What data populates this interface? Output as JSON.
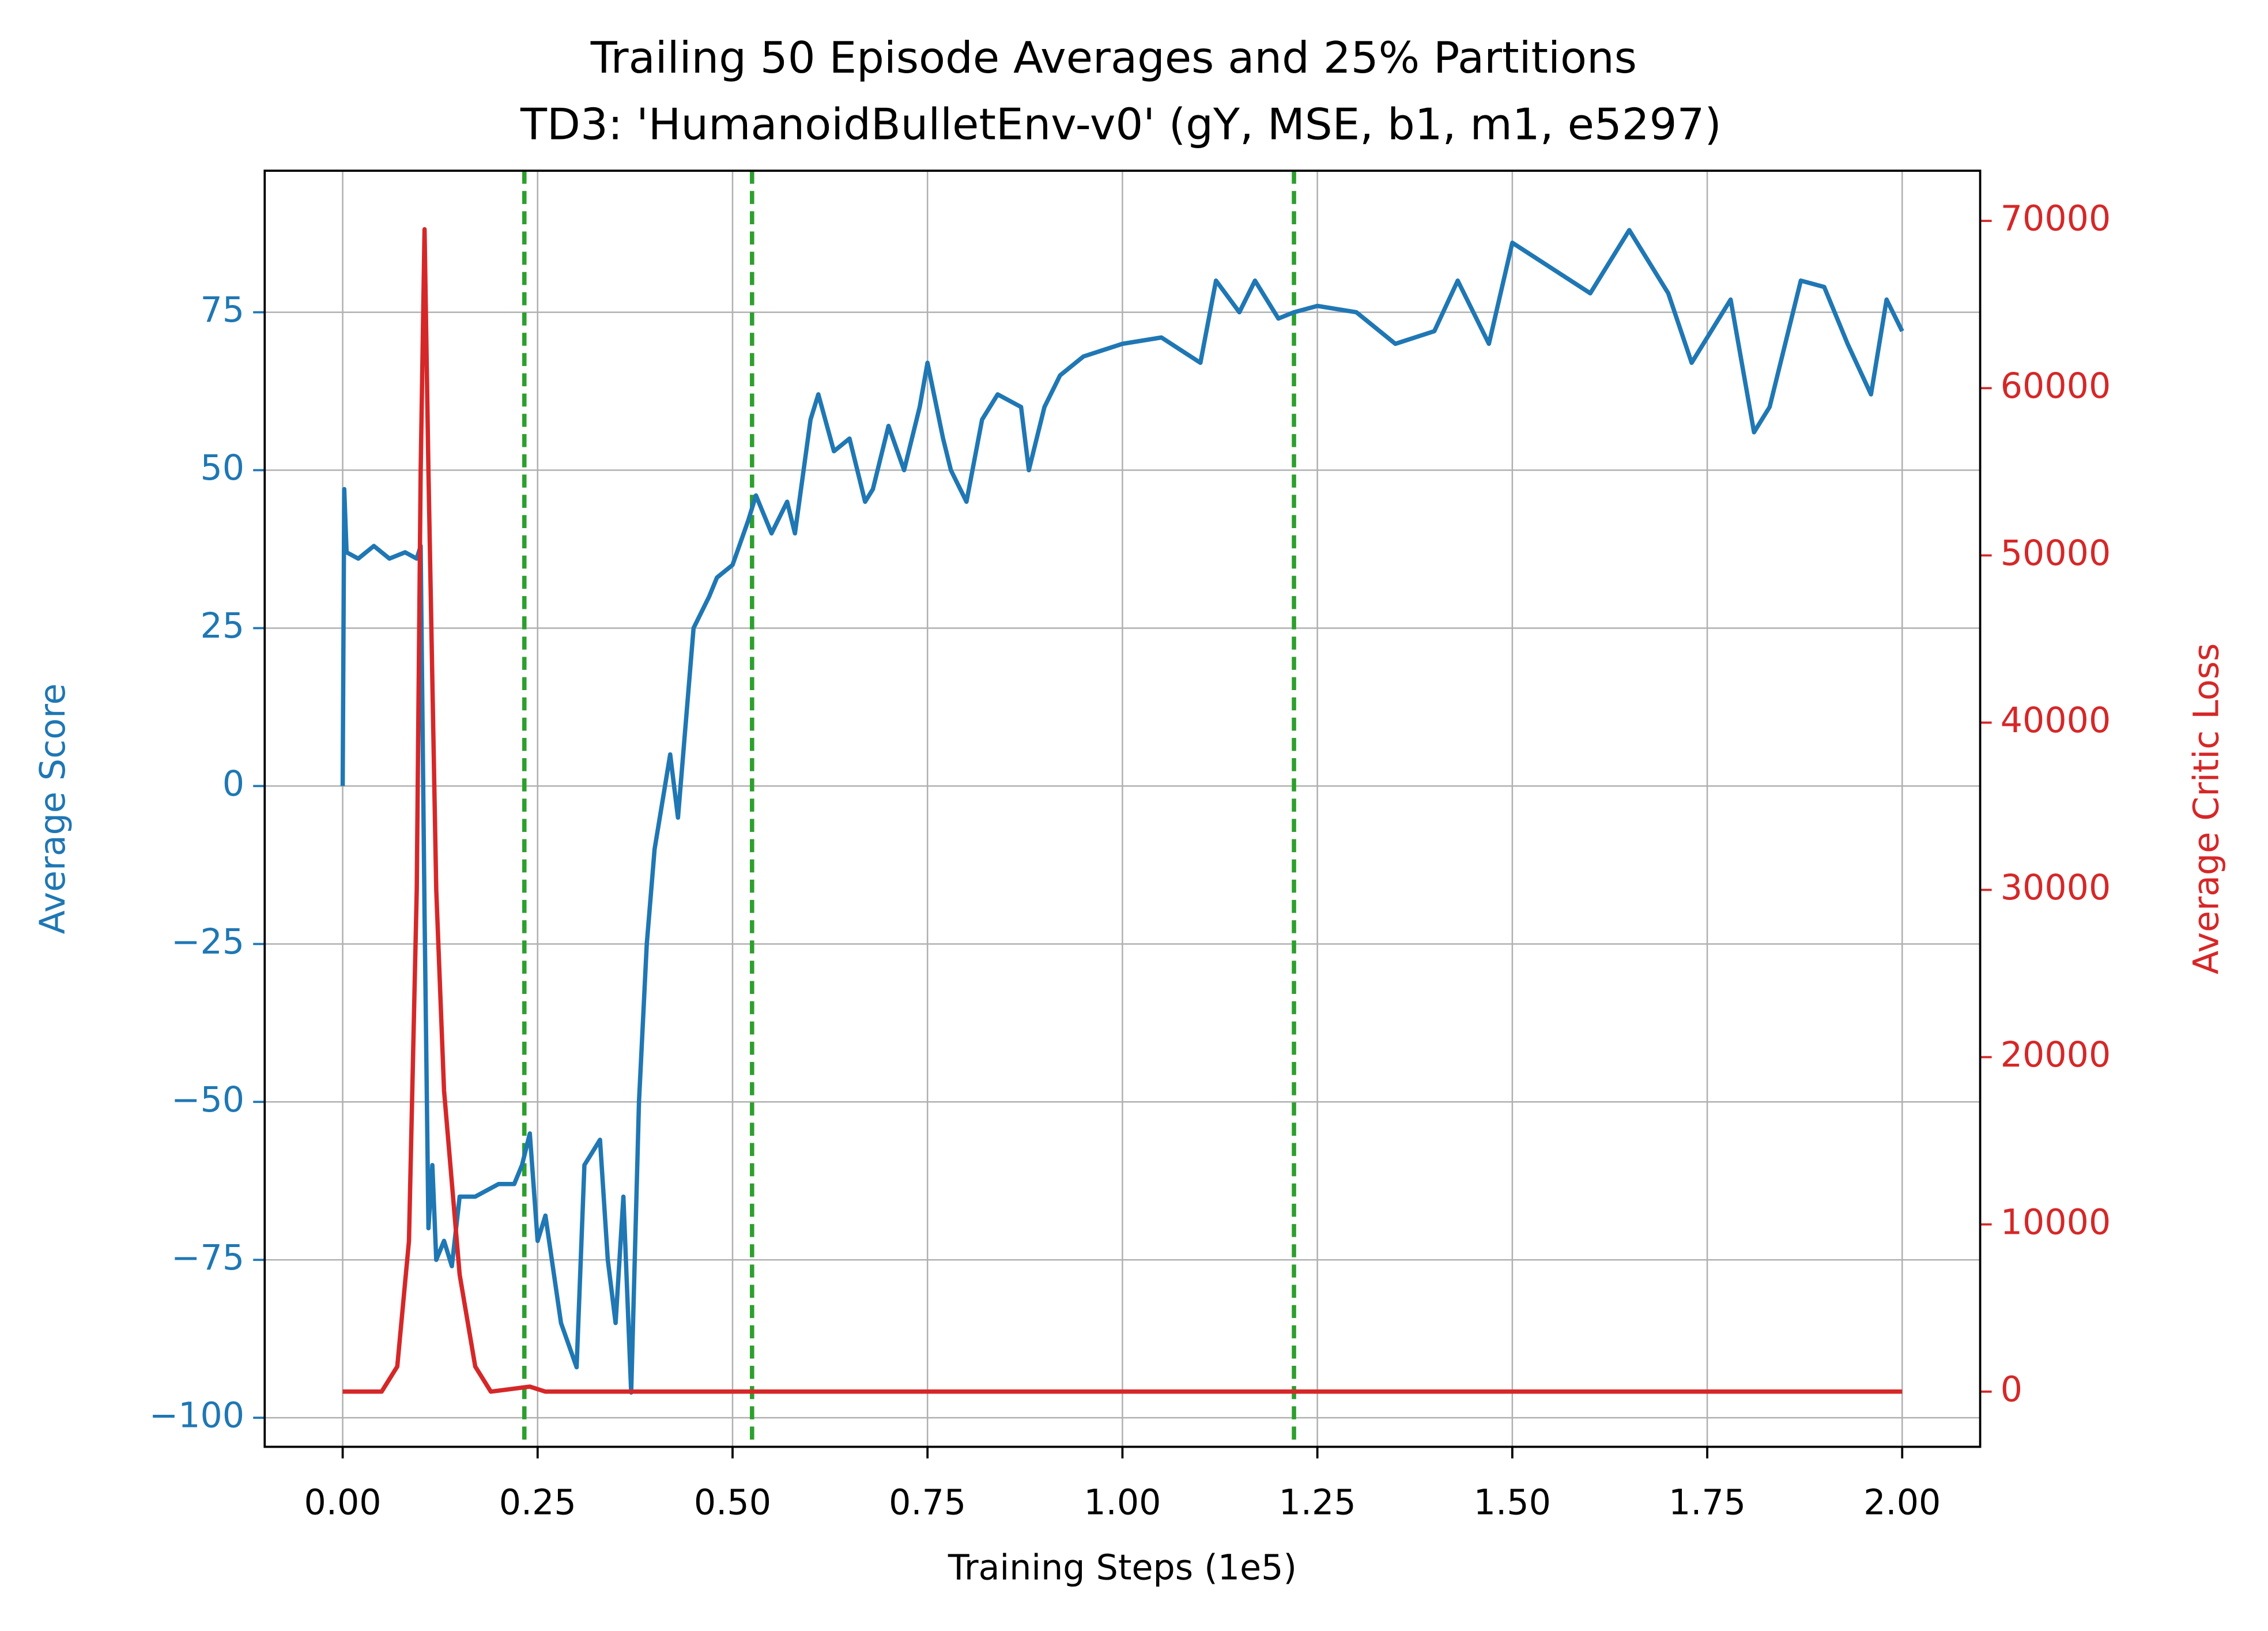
{
  "chart_data": {
    "type": "line",
    "title": "Trailing 50 Episode Averages and 25% Partitions",
    "subtitle": "TD3: 'HumanoidBulletEnv-v0' (gY, MSE, b1, m1, e5297)",
    "xlabel": "Training Steps (1e5)",
    "ylabel": "Average Score",
    "y2label": "Average Critic Loss",
    "xlim": [
      -0.1,
      2.1
    ],
    "ylim": [
      -104.6,
      97.4
    ],
    "y2lim": [
      -3300,
      73000
    ],
    "xticks": [
      {
        "value": 0,
        "label": "0.00"
      },
      {
        "value": 0.25,
        "label": "0.25"
      },
      {
        "value": 0.5,
        "label": "0.50"
      },
      {
        "value": 0.75,
        "label": "0.75"
      },
      {
        "value": 1,
        "label": "1.00"
      },
      {
        "value": 1.25,
        "label": "1.25"
      },
      {
        "value": 1.5,
        "label": "1.50"
      },
      {
        "value": 1.75,
        "label": "1.75"
      },
      {
        "value": 2,
        "label": "2.00"
      }
    ],
    "yticks": [
      {
        "value": -100,
        "label": "−100"
      },
      {
        "value": -75,
        "label": "−75"
      },
      {
        "value": -50,
        "label": "−50"
      },
      {
        "value": -25,
        "label": "−25"
      },
      0,
      25,
      50,
      75
    ],
    "y2ticks": [
      0,
      10000,
      20000,
      30000,
      40000,
      50000,
      60000,
      70000
    ],
    "grid": true,
    "vlines": {
      "color": "#2ca02c",
      "x": [
        0.233,
        0.525,
        1.22
      ]
    },
    "series": [
      {
        "name": "Average Score",
        "color": "#1f77b4",
        "axis": "y",
        "x": [
          0,
          0.002,
          0.005,
          0.02,
          0.04,
          0.06,
          0.08,
          0.095,
          0.1,
          0.105,
          0.11,
          0.115,
          0.12,
          0.13,
          0.14,
          0.15,
          0.17,
          0.2,
          0.22,
          0.23,
          0.24,
          0.25,
          0.26,
          0.28,
          0.3,
          0.31,
          0.33,
          0.34,
          0.35,
          0.36,
          0.37,
          0.38,
          0.39,
          0.4,
          0.42,
          0.43,
          0.45,
          0.47,
          0.48,
          0.5,
          0.52,
          0.53,
          0.55,
          0.57,
          0.58,
          0.6,
          0.61,
          0.63,
          0.65,
          0.67,
          0.68,
          0.7,
          0.72,
          0.74,
          0.75,
          0.77,
          0.78,
          0.8,
          0.82,
          0.84,
          0.87,
          0.88,
          0.9,
          0.92,
          0.95,
          1.0,
          1.05,
          1.1,
          1.12,
          1.15,
          1.17,
          1.2,
          1.22,
          1.25,
          1.3,
          1.35,
          1.4,
          1.43,
          1.47,
          1.5,
          1.55,
          1.6,
          1.65,
          1.7,
          1.73,
          1.78,
          1.81,
          1.83,
          1.87,
          1.9,
          1.93,
          1.96,
          1.98,
          2.0
        ],
        "y": [
          0,
          47,
          37,
          36,
          38,
          36,
          37,
          36,
          38,
          -20,
          -70,
          -60,
          -75,
          -72,
          -76,
          -65,
          -65,
          -63,
          -63,
          -60,
          -55,
          -72,
          -68,
          -85,
          -92,
          -60,
          -56,
          -75,
          -85,
          -65,
          -96,
          -50,
          -25,
          -10,
          5,
          -5,
          25,
          30,
          33,
          35,
          42,
          46,
          40,
          45,
          40,
          58,
          62,
          53,
          55,
          45,
          47,
          57,
          50,
          60,
          67,
          55,
          50,
          45,
          58,
          62,
          60,
          50,
          60,
          65,
          68,
          70,
          71,
          67,
          80,
          75,
          80,
          74,
          75,
          76,
          75,
          70,
          72,
          80,
          70,
          86,
          82,
          78,
          88,
          78,
          67,
          77,
          56,
          60,
          80,
          79,
          70,
          62,
          77,
          72
        ]
      },
      {
        "name": "Average Critic Loss",
        "color": "#d62728",
        "axis": "y2",
        "x": [
          0,
          0.05,
          0.07,
          0.085,
          0.095,
          0.1,
          0.105,
          0.11,
          0.12,
          0.13,
          0.15,
          0.17,
          0.19,
          0.24,
          0.26,
          2.0
        ],
        "y": [
          0,
          0,
          1500,
          9000,
          30000,
          55000,
          69500,
          55000,
          30000,
          18000,
          7000,
          1500,
          0,
          300,
          0,
          0
        ]
      }
    ]
  }
}
